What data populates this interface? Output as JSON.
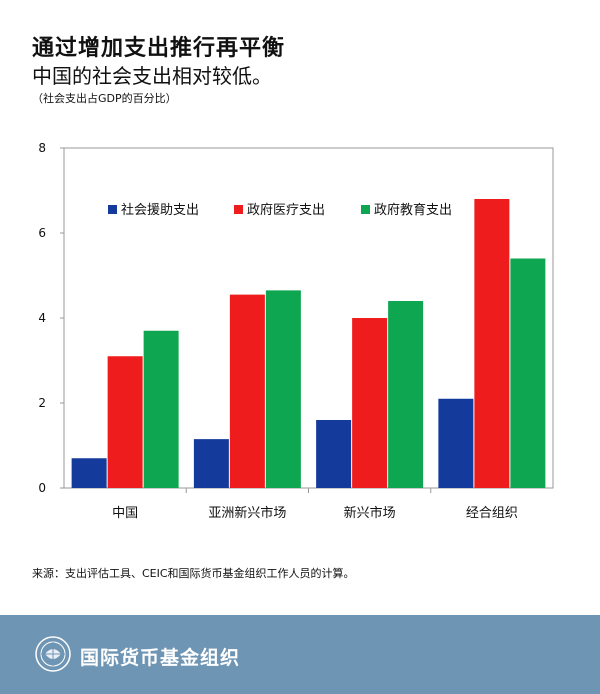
{
  "title": "通过增加支出推行再平衡",
  "subtitle": "中国的社会支出相对较低。",
  "unit_note": "（社会支出占GDP的百分比）",
  "source": "来源：支出评估工具、CEIC和国际货币基金组织工作人员的计算。",
  "footer": {
    "org_name": "国际货币基金组织"
  },
  "chart_data": {
    "type": "bar",
    "title": "通过增加支出推行再平衡",
    "subtitle": "中国的社会支出相对较低。",
    "ylabel": "（社会支出占GDP的百分比）",
    "categories": [
      "中国",
      "亚洲新兴市场",
      "新兴市场",
      "经合组织"
    ],
    "series": [
      {
        "name": "社会援助支出",
        "color": "#143a9b",
        "values": [
          0.7,
          1.15,
          1.6,
          2.1
        ]
      },
      {
        "name": "政府医疗支出",
        "color": "#ee1c1c",
        "values": [
          3.1,
          4.55,
          4.0,
          6.8
        ]
      },
      {
        "name": "政府教育支出",
        "color": "#0fa651",
        "values": [
          3.7,
          4.65,
          4.4,
          5.4
        ]
      }
    ],
    "ylim": [
      0,
      8
    ],
    "yticks": [
      0,
      2,
      4,
      6,
      8
    ],
    "grid": false,
    "legend": "top, inside plot"
  }
}
